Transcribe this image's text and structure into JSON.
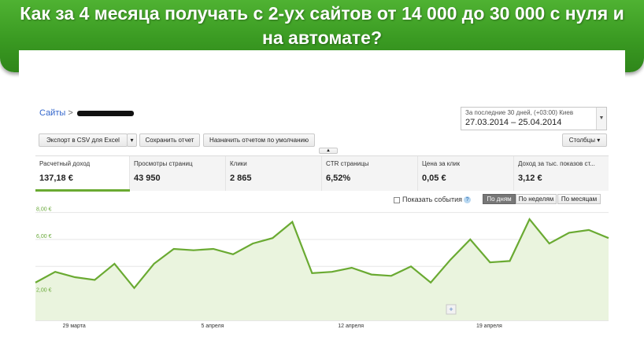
{
  "banner": {
    "title": "Как за 4 месяца получать с 2-ух сайтов от 14 000 до 30 000  с нуля и на автомате?"
  },
  "breadcrumb": {
    "root": "Сайты",
    "separator": ">"
  },
  "date_range": {
    "label": "За последние 30 дней, (+03:00) Киев",
    "value": "27.03.2014 – 25.04.2014"
  },
  "toolbar": {
    "export_label": "Экспорт в CSV для Excel",
    "save_label": "Сохранить отчет",
    "default_label": "Назначить отчетом по умолчанию",
    "columns_label": "Столбцы"
  },
  "metrics": [
    {
      "label": "Расчетный доход",
      "value": "137,18 €"
    },
    {
      "label": "Просмотры страниц",
      "value": "43 950"
    },
    {
      "label": "Клики",
      "value": "2 865"
    },
    {
      "label": "CTR страницы",
      "value": "6,52%"
    },
    {
      "label": "Цена за клик",
      "value": "0,05 €"
    },
    {
      "label": "Доход за тыс. показов ст...",
      "value": "3,12 €"
    }
  ],
  "events_label": "Показать события",
  "period_buttons": [
    "По дням",
    "По неделям",
    "По месяцам"
  ],
  "chart_data": {
    "type": "area",
    "y_ticks": [
      "8,00 €",
      "6,00 €",
      "2,00 €"
    ],
    "x_ticks": [
      "29 марта",
      "5 апреля",
      "12 апреля",
      "19 апреля"
    ],
    "ylim": [
      0,
      8.5
    ],
    "values": [
      2.8,
      3.6,
      3.2,
      3.0,
      4.2,
      2.4,
      4.2,
      5.3,
      5.2,
      5.3,
      4.9,
      5.7,
      6.1,
      7.3,
      3.5,
      3.6,
      3.9,
      3.4,
      3.3,
      4.0,
      2.8,
      4.5,
      6.0,
      4.3,
      4.4,
      7.5,
      5.7,
      6.5,
      6.7,
      6.1
    ],
    "color": "#6aaa32",
    "fill": "#eaf4de",
    "grid": true
  }
}
